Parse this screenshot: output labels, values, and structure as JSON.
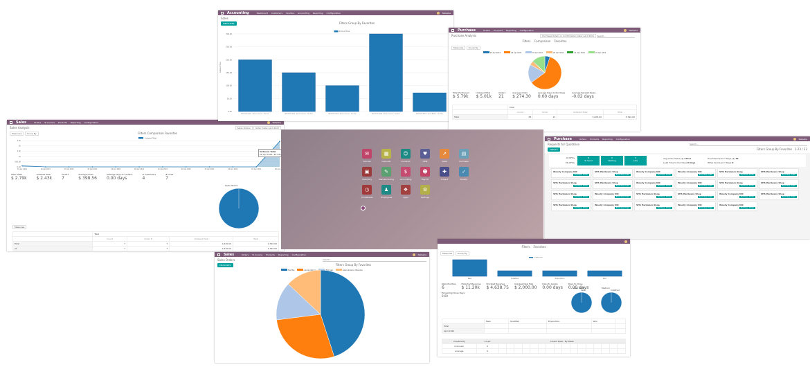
{
  "colors": {
    "nav": "#7c5a78",
    "teal": "#00a09d",
    "blue": "#1f77b4",
    "orange": "#ff7f0e",
    "lightblue": "#aec7e8",
    "peach": "#ffbb78",
    "green": "#2ca02c",
    "lightgreen": "#98df8a"
  },
  "accounting": {
    "app": "Accounting",
    "menu": [
      "Dashboard",
      "Customers",
      "Vendors",
      "Accounting",
      "Reporting",
      "Configuration"
    ],
    "user": "Natasha",
    "breadcrumb": "Sales",
    "measures": "MEASURES",
    "filters": "Filters",
    "group_by": "Group By",
    "favorites": "Favorites"
  },
  "purchase_analysis": {
    "app": "Purchase",
    "menu": [
      "Orders",
      "Products",
      "Reporting",
      "Configuration"
    ],
    "user": "Natasha",
    "title": "Purchase Analysis",
    "facet": "Purchase Orders or Confirmation Date: April 2021",
    "search_placeholder": "Search...",
    "filters": "Filters",
    "comparison": "Comparison",
    "favorites": "Favorites",
    "measures": "Measures",
    "group_by": "Group By",
    "kpis": [
      {
        "label": "Total Purchased",
        "value": "$ 5.79k"
      },
      {
        "label": "Untaxed Total",
        "value": "$ 5.01k"
      },
      {
        "label": "Orders",
        "value": "21"
      },
      {
        "label": "Average Order",
        "value": "$ 274.30"
      },
      {
        "label": "Average Days to Purchase",
        "value": "0.00 days"
      },
      {
        "label": "Average Receipt Delay",
        "value": "-0.02 days"
      }
    ],
    "pivot": {
      "header": "Total",
      "cols": [
        "Count",
        "Order",
        "Untaxed Total",
        "Total"
      ],
      "rows": [
        {
          "label": "Total",
          "values": [
            "38",
            "21",
            "5,005.00",
            "5,790.00"
          ]
        }
      ]
    }
  },
  "sales_analysis": {
    "app": "Sales",
    "menu": [
      "Orders",
      "To Invoice",
      "Products",
      "Reporting",
      "Configuration"
    ],
    "user": "Natasha",
    "title": "Sales Analysis",
    "facet1": "Sales Orders",
    "facet2": "Order Date: April 2021",
    "filters": "Filters",
    "comparison": "Comparison",
    "favorites": "Favorites",
    "measures": "Measures",
    "group_by": "Group By",
    "tooltip": {
      "title": "Untaxed Total",
      "row": "26 Apr 2021: $2.42k"
    },
    "kpis": [
      {
        "label": "Total Sales",
        "value": "$ 2.79k"
      },
      {
        "label": "Untaxed Total",
        "value": "$ 2.43k"
      },
      {
        "label": "Orders",
        "value": "7"
      },
      {
        "label": "Average Order",
        "value": "$ 398.56"
      },
      {
        "label": "Average Days to Confirm",
        "value": "0.00 days"
      },
      {
        "label": "# Customers",
        "value": "4"
      },
      {
        "label": "# Lines",
        "value": "7"
      }
    ],
    "teams_label": "Sales Teams",
    "pivot": {
      "header": "Total",
      "cols": [
        "Count",
        "Order #",
        "Untaxed Total",
        "Total"
      ],
      "rows": [
        {
          "label": "Total",
          "values": [
            "7",
            "7",
            "2,430.00",
            "2,790.00"
          ]
        },
        {
          "label": "all",
          "values": [
            "7",
            "7",
            "2,430.00",
            "2,790.00"
          ]
        }
      ]
    }
  },
  "home_apps": [
    {
      "label": "Discuss",
      "icon": "chat",
      "color": "#c0456a",
      "glyph": "✉"
    },
    {
      "label": "Calendar",
      "icon": "calendar",
      "color": "#b8b44a",
      "glyph": "▦"
    },
    {
      "label": "Contacts",
      "icon": "contacts",
      "color": "#1e8a86",
      "glyph": "☺"
    },
    {
      "label": "CRM",
      "icon": "handshake",
      "color": "#5a5f96",
      "glyph": "♥"
    },
    {
      "label": "Sales",
      "icon": "chart",
      "color": "#e58a3c",
      "glyph": "↗"
    },
    {
      "label": "Purchase",
      "icon": "card",
      "color": "#6aa0b8",
      "glyph": "▤"
    },
    {
      "label": "Inventory",
      "icon": "box",
      "color": "#9c3b3b",
      "glyph": "▣"
    },
    {
      "label": "Manufacturing",
      "icon": "wrench",
      "color": "#5aa070",
      "glyph": "✎"
    },
    {
      "label": "Accounting",
      "icon": "invoice",
      "color": "#c44c70",
      "glyph": "$"
    },
    {
      "label": "Payroll",
      "icon": "payroll",
      "color": "#c24466",
      "glyph": "☻"
    },
    {
      "label": "Project",
      "icon": "puzzle",
      "color": "#4a4f8a",
      "glyph": "✚"
    },
    {
      "label": "Quality",
      "icon": "quality",
      "color": "#4a8ab0",
      "glyph": "✓"
    },
    {
      "label": "Timesheets",
      "icon": "stopwatch",
      "color": "#a03a3a",
      "glyph": "◷"
    },
    {
      "label": "Employees",
      "icon": "people",
      "color": "#1e8a86",
      "glyph": "♟"
    },
    {
      "label": "Apps",
      "icon": "cubes",
      "color": "#a34040",
      "glyph": "❖"
    },
    {
      "label": "Settings",
      "icon": "gear",
      "color": "#b3b04a",
      "glyph": "⚙"
    }
  ],
  "rfq": {
    "app": "Purchase",
    "menu": [
      "Orders",
      "Products",
      "Reporting",
      "Configuration"
    ],
    "user": "Natasha",
    "title": "Requests for Quotation",
    "create": "CREATE",
    "search_placeholder": "Search...",
    "filters": "Filters",
    "group_by": "Group By",
    "favorites": "Favorites",
    "pager": "1-23 / 23",
    "stats": {
      "all_rfqs": "All RFQs",
      "my_rfqs": "My RFQs",
      "tiles": [
        {
          "n": "8",
          "label": "To Send"
        },
        {
          "n": "0",
          "label": "Waiting"
        },
        {
          "n": "0",
          "label": "Late"
        }
      ],
      "avg_order": "Avg Order Value ($)",
      "avg_order_v": "275.0",
      "lead_time": "Lead Time to Purchase",
      "lead_time_v": "0 Days",
      "purchased": "Purchased Last 7 Days ($)",
      "purchased_v": "5k",
      "rfqs_sent": "RFQs Sent Last 7 Days",
      "rfqs_sent_v": "0"
    },
    "po_label": "Purchase Order",
    "cards": [
      "Woody Company INC",
      "SHS Hardware Shop",
      "Woody Company INC",
      "Woody Company INC",
      "SHS Hardware Shop",
      "SHS Hardware Shop",
      "SHS Hardware Shop",
      "SHS Hardware Shop",
      "Woody Company INC",
      "Woody Company INC",
      "SHS Hardware Shop",
      "SHS Hardware Shop",
      "SHS Hardware Shop",
      "Woody Company INC",
      "SHS Hardware Shop",
      "SHS Hardware Shop",
      "Woody Company INC",
      "SHS Hardware Shop",
      "SHS Hardware Shop",
      "Woody Company INC",
      "SHS Hardware Shop",
      "Woody Company INC",
      "Woody Company INC"
    ]
  },
  "crm": {
    "filters": "Filters",
    "favorites": "Favorites",
    "measures": "Measures",
    "group_by": "Group By",
    "kpis": [
      {
        "label": "Opportunities",
        "value": "6"
      },
      {
        "label": "Expected Revenue",
        "value": "$ 11.20k"
      },
      {
        "label": "Prorated Revenue",
        "value": "$ 4,638.75"
      },
      {
        "label": "Average Deal Size",
        "value": "$ 2,000.00"
      },
      {
        "label": "Days to Assign",
        "value": "0.00 days"
      },
      {
        "label": "Days to Close",
        "value": "0.00 days"
      }
    ],
    "extra_kpi": {
      "label": "Exceeding Close Days",
      "value": "0.00"
    },
    "pie1_label": "Sales Team",
    "pie1_legend": "Sales",
    "pie2_label": "Medium",
    "pie2_legend": "Undefined",
    "pivot_stages": [
      "New",
      "Qualified",
      "Proposition",
      "Won"
    ],
    "pivot_total": "Total",
    "pivot_row": "April 2021",
    "cohort_header": "Closed Date - By Week",
    "cohort_cols": [
      "Created By",
      "Count"
    ],
    "cohort_rows": [
      {
        "label": "Unknown",
        "count": "6"
      },
      {
        "label": "Average",
        "count": "6"
      }
    ]
  },
  "sales_orders": {
    "app": "Sales",
    "menu": [
      "Orders",
      "To Invoice",
      "Products",
      "Reporting",
      "Configuration"
    ],
    "user": "Natasha",
    "title": "Sales Orders",
    "search_placeholder": "Search...",
    "filters": "Filters",
    "group_by": "Group By",
    "favorites": "Favorites",
    "measures": "MEASURES"
  },
  "chart_data": [
    {
      "id": "accounting",
      "type": "bar",
      "categories": [
        "INV/2021/0001 - Azure Interior - Tax Due",
        "INV/2021/0002 - Azure Interior - Tax Due",
        "INV/2021/0003 - Azure Interior - Tax Due",
        "INV/2021/0004 - Azure Interior - Tax Due",
        "INV/2021/0005 - Deco Addict - Tax Due"
      ],
      "values": [
        200,
        150,
        100,
        300,
        72
      ],
      "legend": [
        "Amount Due"
      ],
      "ylabel": "Amount Due",
      "yticks": [
        "0.00",
        "50.00",
        "100.00",
        "150.00",
        "200.00",
        "250.00",
        "300.00"
      ],
      "ylim": [
        0,
        300
      ]
    },
    {
      "id": "purchase",
      "type": "pie",
      "legend": [
        "15 Apr 2021",
        "16 Apr 2021",
        "19 Apr 2021",
        "20 Apr 2021",
        "21 Apr 2021",
        "22 Apr 2021"
      ],
      "values": [
        5,
        60,
        18,
        4,
        0.5,
        12.5
      ]
    },
    {
      "id": "sales_line",
      "type": "area",
      "legend": [
        "Untaxed Total"
      ],
      "x": [
        "15 Apr 2021",
        "16 Apr 2021",
        "17 Apr 2021",
        "18 Apr 2021",
        "19 Apr 2021",
        "20 Apr 2021",
        "21 Apr 2021",
        "22 Apr 2021",
        "23 Apr 2021",
        "24 Apr 2021",
        "25 Apr 2021",
        "26 Apr 2021"
      ],
      "values": [
        100,
        0,
        0,
        0,
        0,
        0,
        0,
        0,
        0,
        0,
        0,
        2420
      ],
      "yticks": [
        "0.00",
        "500.00",
        "1k",
        "1.5k",
        "2k",
        "2.5k"
      ],
      "ylim": [
        0,
        2500
      ]
    },
    {
      "id": "sales_team_pie",
      "type": "pie",
      "legend": [
        "Sales"
      ],
      "values": [
        100
      ]
    },
    {
      "id": "sales_orders_pie",
      "type": "pie",
      "legend": [
        "Test Pie",
        "Azure Interior",
        "Test Sub",
        "Azure Interior, Brandon"
      ],
      "values": [
        45,
        28,
        14,
        13
      ]
    },
    {
      "id": "crm_bar",
      "type": "bar",
      "categories": [
        "New",
        "Qualified",
        "Proposition",
        "Won"
      ],
      "values": [
        6,
        2,
        2,
        2
      ],
      "legend": [
        "Undefined"
      ],
      "ylim": [
        0,
        6
      ]
    }
  ]
}
